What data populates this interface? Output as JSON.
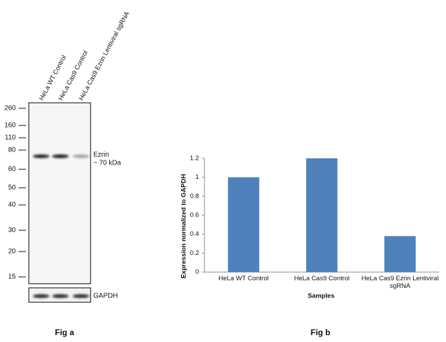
{
  "blot": {
    "lanes": [
      "HeLa WT Control",
      "HeLa Cas9 Control",
      "HeLa Cas9 Ezrin Lentiviral sgRNA"
    ],
    "markers": [
      260,
      160,
      110,
      80,
      60,
      50,
      40,
      30,
      20,
      15
    ],
    "band_label": "Ezrin",
    "band_size": "~ 70 kDa",
    "loading_control": "GAPDH",
    "caption": "Fig a"
  },
  "chart_data": {
    "type": "bar",
    "y_label": "Expression  normalized to GAPDH",
    "x_label": "Samples",
    "categories": [
      "HeLa WT Control",
      "HeLa Cas9 Control",
      "HeLa Cas9 Ezrin Lentiviral sgRNA"
    ],
    "values": [
      1,
      1.2,
      0.38
    ],
    "color": "#4f81bd",
    "ylim": [
      0,
      1.2
    ],
    "yticks": [
      0,
      0.2,
      0.4,
      0.6,
      0.8,
      1,
      1.2
    ],
    "caption": "Fig b"
  }
}
